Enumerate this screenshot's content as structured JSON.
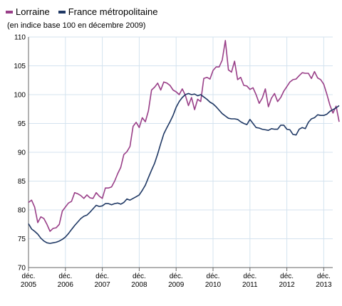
{
  "chart_data": {
    "type": "line",
    "title": "",
    "subtitle": "(en indice base 100 en décembre 2009)",
    "xlabel": "",
    "ylabel": "",
    "ylim": [
      70,
      110
    ],
    "yticks": [
      70,
      75,
      80,
      85,
      90,
      95,
      100,
      105,
      110
    ],
    "xticks": [
      {
        "x": "2005-12",
        "line1": "déc.",
        "line2": "2005"
      },
      {
        "x": "2006-12",
        "line1": "déc.",
        "line2": "2006"
      },
      {
        "x": "2007-12",
        "line1": "déc.",
        "line2": "2007"
      },
      {
        "x": "2008-12",
        "line1": "déc.",
        "line2": "2008"
      },
      {
        "x": "2009-12",
        "line1": "déc.",
        "line2": "2009"
      },
      {
        "x": "2010-12",
        "line1": "déc.",
        "line2": "2010"
      },
      {
        "x": "2011-12",
        "line1": "déc.",
        "line2": "2011"
      },
      {
        "x": "2012-12",
        "line1": "déc.",
        "line2": "2012"
      },
      {
        "x": "2013-12",
        "line1": "déc.",
        "line2": "2013"
      }
    ],
    "xlim": [
      "2005-12",
      "2013-07"
    ],
    "grid": true,
    "legend_position": "top-left",
    "x_start": "2005-12",
    "series": [
      {
        "name": "Lorraine",
        "color": "#993f88",
        "values": [
          81.3,
          81.7,
          80.5,
          77.8,
          78.8,
          78.5,
          77.5,
          76.3,
          76.8,
          76.9,
          77.5,
          79.8,
          80.5,
          81.2,
          81.5,
          83.0,
          82.8,
          82.5,
          82.0,
          82.6,
          82.1,
          82.0,
          83.0,
          82.4,
          82.0,
          83.8,
          83.8,
          84.0,
          85.0,
          86.3,
          87.4,
          89.6,
          90.1,
          91.0,
          94.5,
          95.2,
          94.3,
          96.0,
          95.3,
          97.2,
          100.8,
          101.3,
          102.0,
          100.8,
          102.2,
          102.0,
          101.6,
          100.8,
          100.5,
          100.0,
          101.0,
          99.9,
          98.1,
          99.5,
          97.4,
          99.2,
          98.8,
          102.8,
          103.0,
          102.7,
          104.2,
          104.8,
          104.8,
          106.0,
          109.4,
          104.3,
          103.9,
          105.8,
          102.6,
          103.0,
          101.6,
          101.5,
          100.9,
          101.2,
          100.0,
          98.5,
          99.4,
          101.0,
          97.9,
          99.4,
          100.2,
          98.8,
          99.5,
          100.6,
          101.4,
          102.2,
          102.6,
          102.7,
          103.3,
          103.8,
          103.7,
          103.7,
          102.8,
          104.0,
          102.9,
          102.6,
          101.8,
          100.1,
          98.2,
          96.8,
          98.0,
          95.3
        ]
      },
      {
        "name": "France métropolitaine",
        "color": "#1f3864",
        "values": [
          77.6,
          76.7,
          76.3,
          75.8,
          75.1,
          74.6,
          74.3,
          74.2,
          74.3,
          74.4,
          74.6,
          74.9,
          75.3,
          75.9,
          76.6,
          77.3,
          77.9,
          78.5,
          78.9,
          79.1,
          79.6,
          80.2,
          80.8,
          80.6,
          80.7,
          81.1,
          81.1,
          80.9,
          81.1,
          81.2,
          81.0,
          81.3,
          81.9,
          81.7,
          82.0,
          82.3,
          82.6,
          83.4,
          84.3,
          85.6,
          86.9,
          88.1,
          89.7,
          91.5,
          93.2,
          94.3,
          95.3,
          96.4,
          97.8,
          98.8,
          99.5,
          100.0,
          100.2,
          100.0,
          100.1,
          99.8,
          100.0,
          99.6,
          99.2,
          98.7,
          98.4,
          97.9,
          97.3,
          96.7,
          96.3,
          95.9,
          95.8,
          95.8,
          95.7,
          95.3,
          95.0,
          94.8,
          95.7,
          95.0,
          94.3,
          94.2,
          94.0,
          93.9,
          93.8,
          94.1,
          94.0,
          94.0,
          94.7,
          94.7,
          94.0,
          93.9,
          93.1,
          93.0,
          94.0,
          94.3,
          94.1,
          95.2,
          95.8,
          96.0,
          96.5,
          96.4,
          96.4,
          96.6,
          97.1,
          97.4,
          97.7,
          98.1
        ]
      }
    ]
  }
}
